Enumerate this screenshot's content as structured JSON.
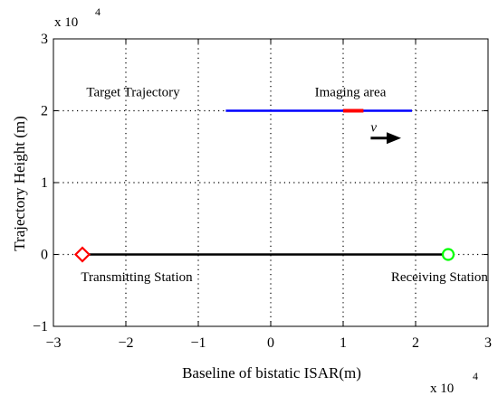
{
  "chart_data": {
    "type": "line",
    "title": "",
    "xlabel": "Baseline of bistatic ISAR(m)",
    "ylabel": "Trajectory Height (m)",
    "xlim": [
      -3,
      3
    ],
    "ylim": [
      -1,
      3
    ],
    "xticks": [
      "-3",
      "-2",
      "-1",
      "0",
      "1",
      "2",
      "3"
    ],
    "yticks": [
      "-1",
      "0",
      "1",
      "2",
      "3"
    ],
    "x_multiplier": {
      "base": "x 10",
      "exp": "4"
    },
    "y_multiplier": {
      "base": "x 10",
      "exp": "4"
    },
    "grid": true,
    "grid_style": "dotted",
    "series": [
      {
        "color": "#0000ff",
        "x": [
          -0.62,
          1.95
        ],
        "y": [
          2,
          2
        ]
      },
      {
        "color": "#ff0000",
        "x": [
          1.0,
          1.28
        ],
        "y": [
          2,
          2
        ]
      },
      {
        "color": "#000000",
        "x": [
          -2.6,
          2.45
        ],
        "y": [
          0,
          0
        ]
      }
    ],
    "markers": [
      {
        "shape": "diamond",
        "color": "#ff0000",
        "x": -2.6,
        "y": 0
      },
      {
        "shape": "circle",
        "color": "#00ff00",
        "x": 2.45,
        "y": 0
      }
    ],
    "annotations": [
      {
        "text": "Target Trajectory",
        "x": -1.9,
        "y": 2.2
      },
      {
        "text": "Imaging area",
        "x": 1.1,
        "y": 2.2
      },
      {
        "text": "v",
        "x": 1.38,
        "y": 1.71,
        "italic": true
      },
      {
        "text": "Transmitting Station",
        "x": -1.85,
        "y": -0.37
      },
      {
        "text": "Receiving Station",
        "x": 2.33,
        "y": -0.37
      }
    ],
    "velocity_arrow": {
      "from": [
        1.38,
        1.62
      ],
      "to": [
        1.8,
        1.62
      ],
      "color": "#000000"
    }
  }
}
